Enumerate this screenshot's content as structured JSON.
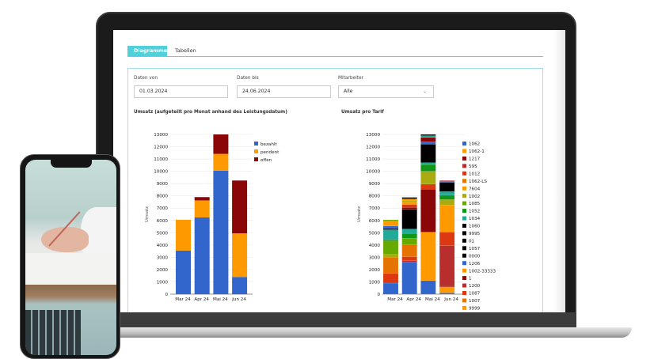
{
  "tabs": [
    {
      "label": "Diagramme",
      "active": true
    },
    {
      "label": "Tabellen",
      "active": false
    }
  ],
  "filters": {
    "date_from": {
      "label": "Daten von",
      "value": "01.03.2024"
    },
    "date_to": {
      "label": "Daten bis",
      "value": "24.06.2024"
    },
    "employee": {
      "label": "Mitarbeiter",
      "value": "Alle"
    }
  },
  "colors": {
    "accent": "#4fd0db"
  },
  "chart_data": [
    {
      "type": "bar",
      "stacked": true,
      "title": "Umsatz (aufgeteilt pro Monat anhand des Leistungsdatum)",
      "ylabel": "Umsatz",
      "ylim": [
        0,
        13000
      ],
      "yticks": [
        0,
        1000,
        2000,
        3000,
        4000,
        5000,
        6000,
        7000,
        8000,
        9000,
        10000,
        11000,
        12000,
        13000
      ],
      "categories": [
        "Mar 24",
        "Apr 24",
        "Mai 24",
        "Jun 24"
      ],
      "legend_position": "right",
      "series": [
        {
          "name": "bezahlt",
          "color": "#3366cc",
          "values": [
            3550,
            6250,
            10050,
            1400
          ]
        },
        {
          "name": "pendent",
          "color": "#ff9900",
          "values": [
            2500,
            1380,
            1370,
            3550
          ]
        },
        {
          "name": "offen",
          "color": "#8b0707",
          "values": [
            0,
            270,
            1580,
            4300
          ]
        }
      ]
    },
    {
      "type": "bar",
      "stacked": true,
      "title": "Umsatz pro Tarif",
      "ylabel": "Umsatz",
      "ylim": [
        0,
        13000
      ],
      "yticks": [
        0,
        1000,
        2000,
        3000,
        4000,
        5000,
        6000,
        7000,
        8000,
        9000,
        10000,
        11000,
        12000,
        13000
      ],
      "categories": [
        "Mar 24",
        "Apr 24",
        "Mai 24",
        "Jun 24"
      ],
      "legend_position": "right",
      "legend": [
        {
          "name": "1062",
          "color": "#3366cc"
        },
        {
          "name": "1062-1",
          "color": "#ff9900"
        },
        {
          "name": "1217",
          "color": "#8b0707"
        },
        {
          "name": "595",
          "color": "#b82e2e"
        },
        {
          "name": "1012",
          "color": "#dc3912"
        },
        {
          "name": "1062-LS",
          "color": "#e67300"
        },
        {
          "name": "7604",
          "color": "#ff9900"
        },
        {
          "name": "1002",
          "color": "#aaaa11"
        },
        {
          "name": "1085",
          "color": "#66aa00"
        },
        {
          "name": "1052",
          "color": "#109618"
        },
        {
          "name": "1034",
          "color": "#22aa99"
        },
        {
          "name": "1060",
          "color": "#000000"
        },
        {
          "name": "9995",
          "color": "#000000"
        },
        {
          "name": "01",
          "color": "#000000"
        },
        {
          "name": "1057",
          "color": "#000000"
        },
        {
          "name": "0000",
          "color": "#000000"
        },
        {
          "name": "1206",
          "color": "#3366cc"
        },
        {
          "name": "1002-33333",
          "color": "#ff9900"
        },
        {
          "name": "1",
          "color": "#8b0707"
        },
        {
          "name": "1200",
          "color": "#b82e2e"
        },
        {
          "name": "1087",
          "color": "#dc3912"
        },
        {
          "name": "1007",
          "color": "#e67300"
        },
        {
          "name": "9999",
          "color": "#ff9900"
        }
      ],
      "stacks": [
        [
          [
            "1062",
            900
          ],
          [
            "1087",
            800
          ],
          [
            "1007",
            1300
          ],
          [
            "1002",
            250
          ],
          [
            "1085",
            1100
          ],
          [
            "1052",
            100
          ],
          [
            "1034",
            800
          ],
          [
            "1060",
            100
          ],
          [
            "1206",
            200
          ],
          [
            "7604",
            400
          ],
          [
            "1085",
            100
          ]
        ],
        [
          [
            "1062",
            2600
          ],
          [
            "1200",
            150
          ],
          [
            "1087",
            300
          ],
          [
            "1007",
            1000
          ],
          [
            "1085",
            500
          ],
          [
            "1052",
            400
          ],
          [
            "1034",
            350
          ],
          [
            "1060",
            1600
          ],
          [
            "1217",
            150
          ],
          [
            "1012",
            250
          ],
          [
            "7604",
            200
          ],
          [
            "1002",
            100
          ],
          [
            "1062-1",
            150
          ],
          [
            "9995",
            100
          ],
          [
            "1085",
            50
          ]
        ],
        [
          [
            "1062",
            1100
          ],
          [
            "1062-1",
            3950
          ],
          [
            "1217",
            3500
          ],
          [
            "1012",
            400
          ],
          [
            "1002",
            1050
          ],
          [
            "1052",
            550
          ],
          [
            "1034",
            150
          ],
          [
            "1060",
            1500
          ],
          [
            "1206",
            200
          ],
          [
            "1217",
            350
          ],
          [
            "1034",
            150
          ],
          [
            "0000",
            100
          ]
        ],
        [
          [
            "1062",
            100
          ],
          [
            "9999",
            500
          ],
          [
            "1",
            100
          ],
          [
            "1200",
            3250
          ],
          [
            "1012",
            1100
          ],
          [
            "1062-1",
            2200
          ],
          [
            "1002",
            450
          ],
          [
            "1052",
            350
          ],
          [
            "1034",
            300
          ],
          [
            "1060",
            750
          ],
          [
            "1206",
            100
          ],
          [
            "595",
            50
          ]
        ]
      ]
    }
  ]
}
